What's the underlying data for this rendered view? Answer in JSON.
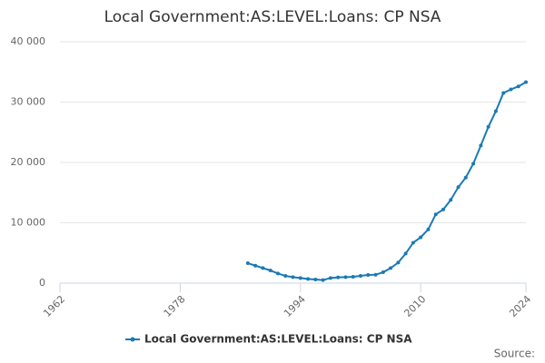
{
  "chart_data": {
    "type": "line",
    "title": "Local Government:AS:LEVEL:Loans: CP NSA",
    "x": [
      1987,
      1988,
      1989,
      1990,
      1991,
      1992,
      1993,
      1994,
      1995,
      1996,
      1997,
      1998,
      1999,
      2000,
      2001,
      2002,
      2003,
      2004,
      2005,
      2006,
      2007,
      2008,
      2009,
      2010,
      2011,
      2012,
      2013,
      2014,
      2015,
      2016,
      2017,
      2018,
      2019,
      2020,
      2021,
      2022,
      2023,
      2024
    ],
    "series": [
      {
        "name": "Local Government:AS:LEVEL:Loans: CP NSA",
        "color": "#1a7ab5",
        "values": [
          3300,
          2900,
          2500,
          2100,
          1600,
          1200,
          1000,
          850,
          700,
          600,
          500,
          850,
          950,
          1000,
          1050,
          1200,
          1350,
          1400,
          1800,
          2500,
          3400,
          4900,
          6700,
          7600,
          8900,
          11400,
          12200,
          13800,
          15900,
          17500,
          19800,
          22800,
          25900,
          28500,
          31500,
          32100,
          32600,
          33300
        ]
      }
    ],
    "xlim": [
      1962,
      2024
    ],
    "xticks": [
      1962,
      1978,
      1994,
      2010,
      2024
    ],
    "ylim": [
      0,
      40000
    ],
    "yticks": [
      0,
      {
        "value": 10000,
        "label": "10 000"
      },
      {
        "value": 20000,
        "label": "20 000"
      },
      {
        "value": 30000,
        "label": "30 000"
      },
      {
        "value": 40000,
        "label": "40 000"
      }
    ],
    "grid": true,
    "source": "Source:"
  }
}
